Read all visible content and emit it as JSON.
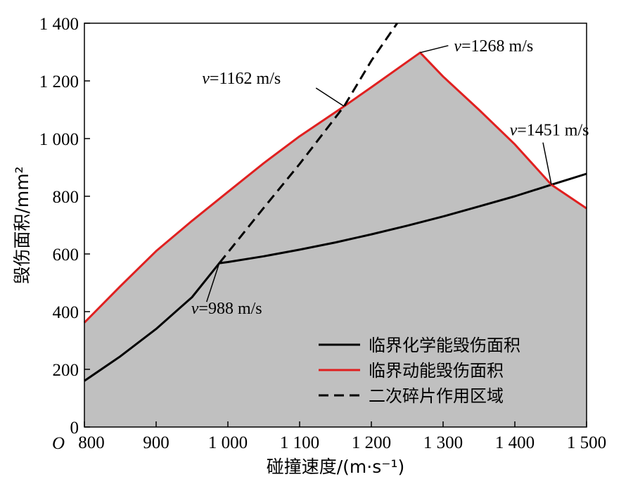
{
  "chart_data": {
    "type": "line",
    "xlabel": "碰撞速度/(m·s⁻¹)",
    "ylabel": "毁伤面积/mm²",
    "origin_label": "O",
    "xlim": [
      800,
      1500
    ],
    "ylim": [
      0,
      1400
    ],
    "x_ticks": [
      800,
      900,
      1000,
      1100,
      1200,
      1300,
      1400,
      1500
    ],
    "x_tick_labels": [
      "800",
      "900",
      "1 000",
      "1 100",
      "1 200",
      "1 300",
      "1 400",
      "1 500"
    ],
    "y_ticks": [
      0,
      200,
      400,
      600,
      800,
      1000,
      1200,
      1400
    ],
    "y_tick_labels": [
      "0",
      "200",
      "400",
      "600",
      "800",
      "1 000",
      "1 200",
      "1 400"
    ],
    "grid": false,
    "legend_position": "bottom-right",
    "fill_color": "#c0c0c0",
    "series": [
      {
        "name": "临界化学能毁伤面积",
        "color": "#000000",
        "style": "solid",
        "x": [
          800,
          850,
          900,
          950,
          988,
          1000,
          1050,
          1100,
          1150,
          1200,
          1250,
          1300,
          1350,
          1400,
          1451,
          1500
        ],
        "y": [
          160,
          245,
          340,
          450,
          568,
          572,
          592,
          615,
          640,
          668,
          698,
          730,
          765,
          800,
          840,
          878
        ]
      },
      {
        "name": "临界动能毁伤面积",
        "color": "#e02020",
        "style": "solid",
        "x": [
          800,
          850,
          900,
          950,
          1000,
          1050,
          1100,
          1162,
          1200,
          1268,
          1300,
          1350,
          1400,
          1451,
          1500
        ],
        "y": [
          362,
          488,
          610,
          715,
          815,
          915,
          1008,
          1112,
          1178,
          1298,
          1215,
          1100,
          980,
          840,
          758
        ]
      },
      {
        "name": "二次碎片作用区域",
        "color": "#000000",
        "style": "dashed",
        "x": [
          988,
          1050,
          1100,
          1162,
          1200,
          1236
        ],
        "y": [
          568,
          760,
          912,
          1112,
          1270,
          1400
        ]
      }
    ],
    "annotations": [
      {
        "label": "v=988 m/s",
        "x": 988,
        "y": 568
      },
      {
        "label": "v=1162 m/s",
        "x": 1162,
        "y": 1112
      },
      {
        "label": "v=1268 m/s",
        "x": 1268,
        "y": 1298
      },
      {
        "label": "v=1451 m/s",
        "x": 1451,
        "y": 840
      }
    ]
  }
}
